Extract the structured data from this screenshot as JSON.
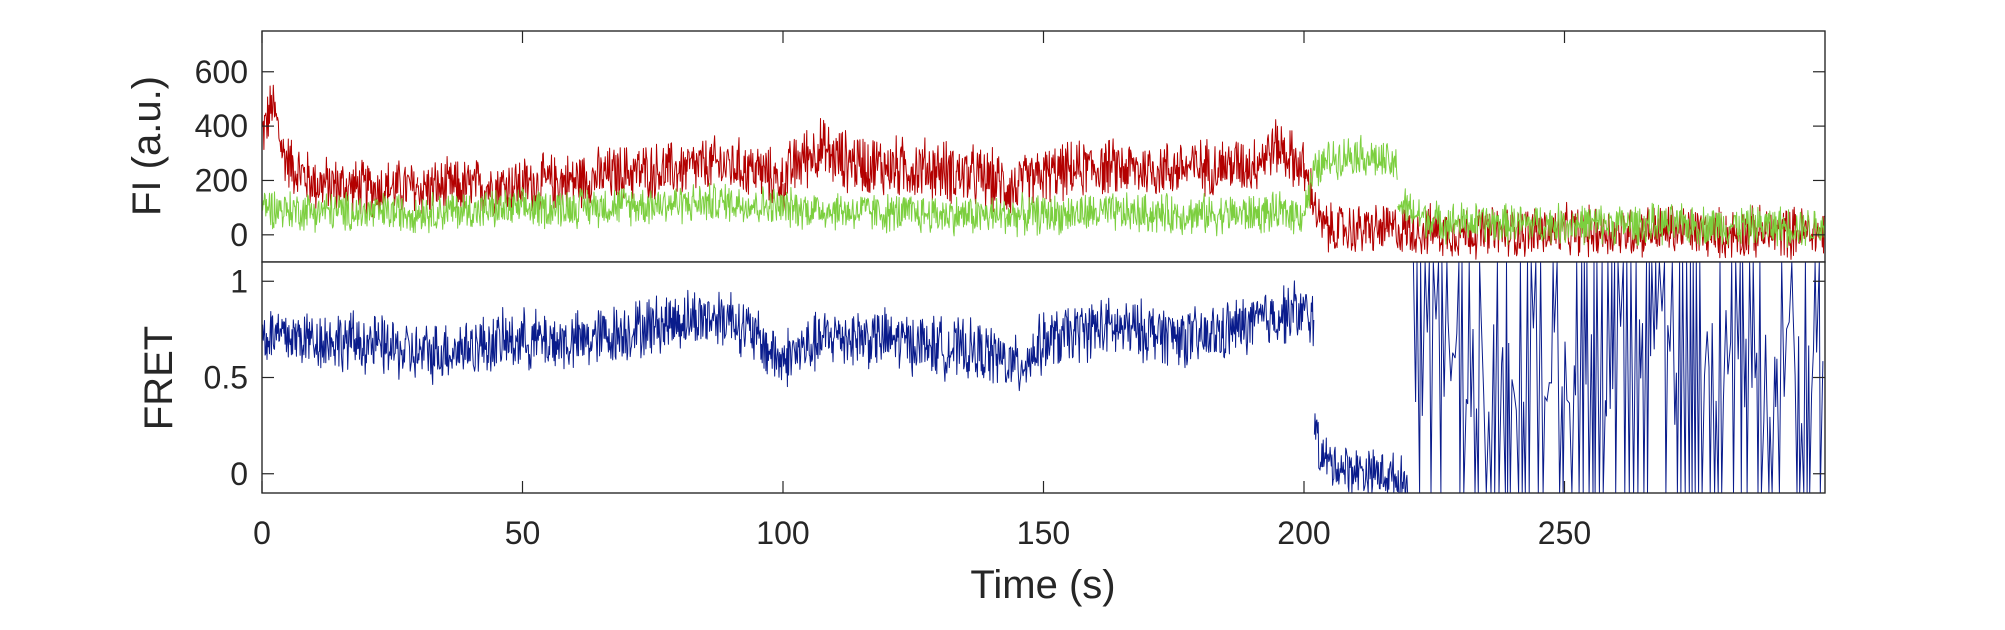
{
  "chart_data": [
    {
      "type": "line",
      "title": "",
      "xlabel": "",
      "ylabel": "FI (a.u.)",
      "xlim": [
        0,
        300
      ],
      "ylim": [
        -100,
        750
      ],
      "yticks": [
        0,
        200,
        400,
        600
      ],
      "grid": false,
      "legend": "none",
      "series": [
        {
          "color": "#b30000",
          "segments": [
            {
              "x": [
                0,
                1,
                2,
                3,
                4,
                6,
                8,
                10,
                15,
                20,
                25,
                30
              ],
              "y": [
                370,
                420,
                480,
                400,
                300,
                250,
                220,
                190,
                180,
                170,
                175,
                170
              ]
            },
            {
              "x": [
                30,
                40,
                50,
                60,
                70,
                80,
                88,
                95,
                100
              ],
              "y": [
                170,
                175,
                185,
                200,
                230,
                240,
                260,
                240,
                190
              ]
            },
            {
              "x": [
                100,
                103,
                107,
                110,
                120,
                130,
                140,
                145
              ],
              "y": [
                200,
                270,
                320,
                280,
                250,
                240,
                200,
                170
              ]
            },
            {
              "x": [
                145,
                150,
                160,
                170,
                180,
                190,
                195,
                200
              ],
              "y": [
                180,
                220,
                250,
                240,
                250,
                260,
                330,
                240
              ]
            },
            {
              "x": [
                200,
                202,
                203,
                205,
                210,
                220,
                230,
                240,
                250,
                260,
                270,
                280,
                290,
                300
              ],
              "y": [
                230,
                120,
                40,
                20,
                20,
                20,
                10,
                10,
                15,
                10,
                20,
                5,
                10,
                10
              ]
            }
          ],
          "noise": [
            100,
            100,
            110,
            100,
            90,
            45,
            45,
            45,
            45,
            45,
            45,
            45,
            45,
            45
          ]
        },
        {
          "color": "#7ccf3f",
          "segments": [
            {
              "x": [
                0,
                5,
                10,
                20,
                30,
                50,
                70,
                90,
                100,
                120,
                140,
                160,
                180,
                200
              ],
              "y": [
                110,
                90,
                90,
                80,
                85,
                95,
                110,
                120,
                100,
                80,
                70,
                80,
                75,
                80
              ]
            },
            {
              "x": [
                200,
                202,
                205,
                210,
                215,
                218
              ],
              "y": [
                90,
                230,
                280,
                300,
                270,
                250
              ]
            },
            {
              "x": [
                218,
                221,
                225,
                240,
                260,
                280,
                300
              ],
              "y": [
                120,
                80,
                50,
                40,
                40,
                35,
                30
              ]
            }
          ],
          "noise": [
            70,
            70,
            70,
            70,
            70,
            70,
            70,
            70,
            70,
            70,
            70,
            70,
            70,
            70,
            70,
            70
          ]
        }
      ]
    },
    {
      "type": "line",
      "title": "",
      "xlabel": "Time (s)",
      "ylabel": "FRET",
      "xlim": [
        0,
        300
      ],
      "ylim": [
        -0.1,
        1.1
      ],
      "xticks": [
        0,
        50,
        100,
        150,
        200,
        250
      ],
      "yticks": [
        0,
        0.5,
        1
      ],
      "ytick_labels": [
        "0",
        "0.5",
        "1"
      ],
      "grid": false,
      "legend": "none",
      "series": [
        {
          "color": "#0a1c8c",
          "segments": [
            {
              "x": [
                0,
                10,
                20,
                30,
                40,
                50,
                60,
                70,
                80,
                90,
                95,
                100
              ],
              "y": [
                0.72,
                0.7,
                0.68,
                0.62,
                0.66,
                0.7,
                0.68,
                0.74,
                0.8,
                0.82,
                0.7,
                0.58
              ]
            },
            {
              "x": [
                100,
                110,
                120,
                130,
                140,
                145,
                150,
                160,
                170,
                180,
                190,
                198,
                202
              ],
              "y": [
                0.6,
                0.72,
                0.7,
                0.66,
                0.62,
                0.55,
                0.68,
                0.76,
                0.74,
                0.7,
                0.78,
                0.85,
                0.8
              ]
            },
            {
              "x": [
                202,
                203,
                205,
                210,
                215,
                220
              ],
              "y": [
                0.3,
                0.1,
                0.05,
                0.02,
                0.0,
                -0.05
              ]
            }
          ],
          "noise": [
            0.15,
            0.15,
            0.12,
            0.1
          ],
          "alternating_region": {
            "x": [
              221,
              300
            ],
            "levels": [
              -0.1,
              1.1
            ]
          }
        }
      ]
    }
  ]
}
